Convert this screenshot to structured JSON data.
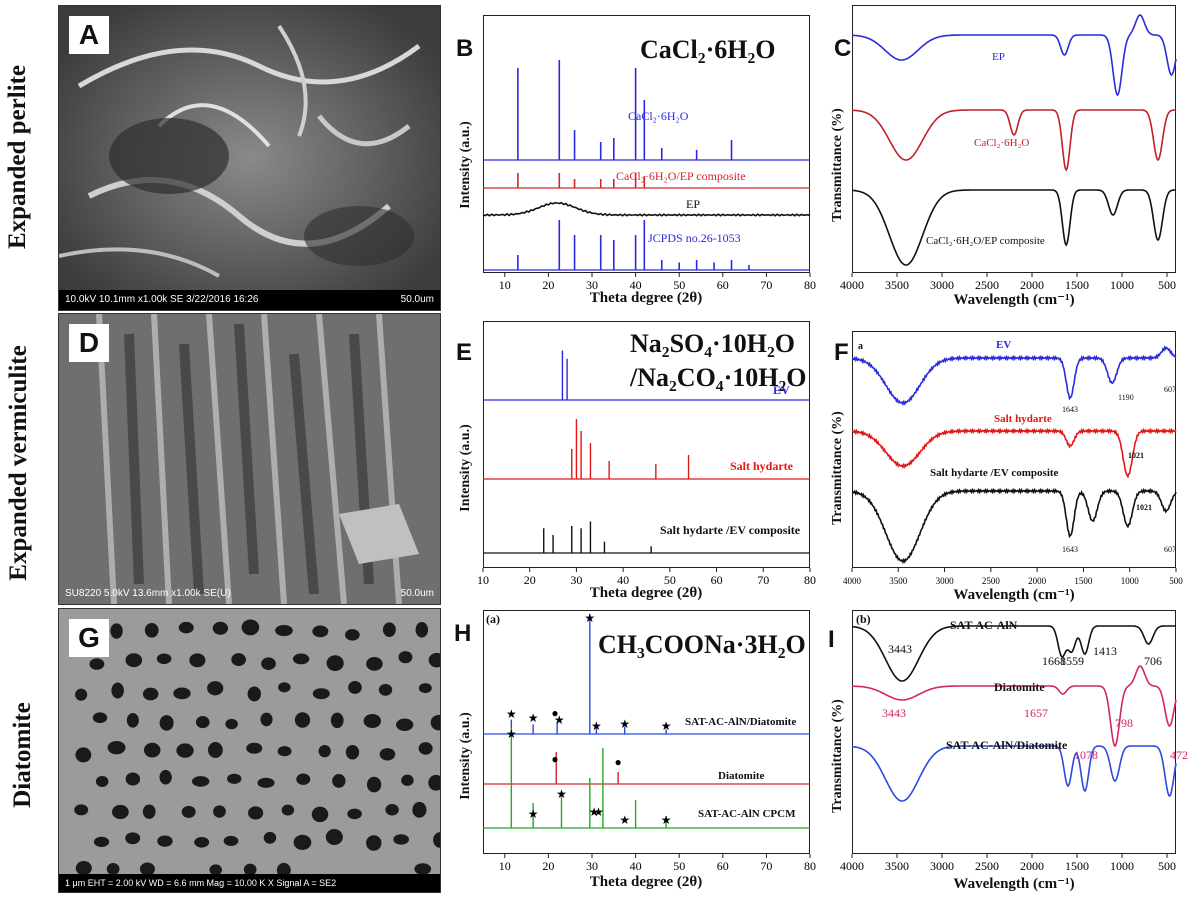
{
  "rows": [
    {
      "label": "Expanded perlite"
    },
    {
      "label": "Expanded vermiculite"
    },
    {
      "label": "Diatomite"
    }
  ],
  "sem": [
    {
      "letter": "A",
      "caption_left": "10.0kV 10.1mm x1.00k SE 3/22/2016 16:26",
      "caption_right": "50.0um"
    },
    {
      "letter": "D",
      "caption_left": "SU8220 5.0kV 13.6mm x1.00k SE(U)",
      "caption_right": "50.0um"
    },
    {
      "letter": "G",
      "caption_left": "1 μm   EHT = 2.00 kV   WD = 6.6 mm   Mag = 10.00 K X   Signal A = SE2",
      "caption_right": ""
    }
  ],
  "xrd": [
    {
      "letter": "B",
      "title": "CaCl₂·6H₂O",
      "title2": "",
      "tag": "",
      "xlabel": "Theta degree (2θ)",
      "ylabel": "Intensity (a.u.)",
      "ticks": [
        "10",
        "20",
        "30",
        "40",
        "50",
        "60",
        "70",
        "80"
      ],
      "series": [
        {
          "name": "CaCl₂·6H₂O",
          "color": "#2a2ae0"
        },
        {
          "name": "CaCl₂·6H₂O/EP composite",
          "color": "#d4252c"
        },
        {
          "name": "EP",
          "color": "#111111"
        },
        {
          "name": "JCPDS no.26-1053",
          "color": "#2a2ae0"
        }
      ]
    },
    {
      "letter": "E",
      "title": "Na₂SO₄·10H₂O",
      "title2": "/Na₂CO₄·10H₂O",
      "tag": "",
      "xlabel": "Theta degree (2θ)",
      "ylabel": "Intensity (a.u.)",
      "ticks": [
        "10",
        "20",
        "30",
        "40",
        "50",
        "60",
        "70",
        "80"
      ],
      "series": [
        {
          "name": "EV",
          "color": "#2a2ae0"
        },
        {
          "name": "Salt hydarte",
          "color": "#e01818"
        },
        {
          "name": "Salt hydarte /EV composite",
          "color": "#111111"
        }
      ]
    },
    {
      "letter": "H",
      "title": "CH₃COONa·3H₂O",
      "title2": "",
      "tag": "(a)",
      "xlabel": "Theta degree (2θ)",
      "ylabel": "Intensity (a.u.)",
      "ticks": [
        "10",
        "20",
        "30",
        "40",
        "50",
        "60",
        "70",
        "80"
      ],
      "series": [
        {
          "name": "SAT-AC-AlN/Diatomite",
          "color": "#2a4ae0"
        },
        {
          "name": "Diatomite",
          "color": "#d4252c"
        },
        {
          "name": "SAT-AC-AlN CPCM",
          "color": "#22aa22"
        }
      ]
    }
  ],
  "ftir": [
    {
      "letter": "C",
      "tag": "",
      "xlabel": "Wavelength (cm⁻¹)",
      "ylabel": "Transmittance (%)",
      "ticks": [
        "4000",
        "3500",
        "3000",
        "2500",
        "2000",
        "1500",
        "1000",
        "500"
      ],
      "series": [
        {
          "name": "EP",
          "color": "#2a2ae0"
        },
        {
          "name": "CaCl₂·6H₂O",
          "color": "#c0202a"
        },
        {
          "name": "CaCl₂·6H₂O/EP composite",
          "color": "#111111"
        }
      ],
      "peaks": []
    },
    {
      "letter": "F",
      "tag": "a",
      "xlabel": "Wavelength (cm⁻¹)",
      "ylabel": "Transmittance (%)",
      "ticks": [
        "4000",
        "3500",
        "3000",
        "2500",
        "2000",
        "1500",
        "1000",
        "500"
      ],
      "series": [
        {
          "name": "EV",
          "color": "#2a2ae0"
        },
        {
          "name": "Salt hydarte",
          "color": "#e01818"
        },
        {
          "name": "Salt hydarte /EV composite",
          "color": "#111111"
        }
      ],
      "peaks": [
        "1643",
        "1190",
        "607",
        "1021",
        "1021",
        "1643",
        "607"
      ]
    },
    {
      "letter": "I",
      "tag": "(b)",
      "xlabel": "Wavelength (cm⁻¹)",
      "ylabel": "Transmittance (%)",
      "ticks": [
        "4000",
        "3500",
        "3000",
        "2500",
        "2000",
        "1500",
        "1000",
        "500"
      ],
      "series": [
        {
          "name": "SAT-AC-AlN",
          "color": "#111111"
        },
        {
          "name": "Diatomite",
          "color": "#d4256a"
        },
        {
          "name": "SAT-AC-AlN/Diatomite",
          "color": "#2a4ae0"
        }
      ],
      "peaks": [
        "3443",
        "1668",
        "1559",
        "1413",
        "706",
        "3443",
        "1657",
        "798",
        "1078",
        "472"
      ]
    }
  ],
  "chart_data": [
    {
      "panel": "B",
      "type": "line",
      "title": "CaCl₂·6H₂O",
      "xlabel": "Theta degree (2θ)",
      "ylabel": "Intensity (a.u.)",
      "xlim": [
        5,
        80
      ],
      "series": [
        {
          "name": "CaCl₂·6H₂O",
          "peaks_2theta": [
            13,
            22.5,
            26,
            32,
            35,
            40,
            42,
            46,
            54,
            62
          ]
        },
        {
          "name": "CaCl₂·6H₂O/EP composite",
          "peaks_2theta": [
            13,
            22.5,
            26,
            32,
            35,
            40,
            42
          ]
        },
        {
          "name": "EP",
          "broad_hump_2theta": 22
        },
        {
          "name": "JCPDS no.26-1053",
          "peaks_2theta": [
            13,
            22.5,
            26,
            32,
            35,
            40,
            42,
            46,
            50,
            54,
            58,
            62,
            66
          ]
        }
      ]
    },
    {
      "panel": "E",
      "type": "line",
      "title": "Na₂SO₄·10H₂O/Na₂CO₄·10H₂O",
      "xlabel": "Theta degree (2θ)",
      "ylabel": "Intensity (a.u.)",
      "xlim": [
        10,
        80
      ],
      "series": [
        {
          "name": "EV",
          "peaks_2theta": [
            27,
            28
          ]
        },
        {
          "name": "Salt hydarte",
          "peaks_2theta": [
            29,
            30,
            31,
            33,
            37,
            47,
            54
          ]
        },
        {
          "name": "Salt hydarte /EV composite",
          "peaks_2theta": [
            23,
            25,
            29,
            31,
            33,
            36,
            46
          ]
        }
      ]
    },
    {
      "panel": "H",
      "type": "line",
      "title": "CH₃COONa·3H₂O",
      "xlabel": "Theta degree (2θ)",
      "ylabel": "Intensity (a.u.)",
      "xlim": [
        5,
        80
      ],
      "series": [
        {
          "name": "SAT-AC-AlN/Diatomite",
          "peaks_2theta": [
            11.5,
            16.5,
            22,
            29.5,
            31,
            37.5,
            47
          ]
        },
        {
          "name": "Diatomite",
          "peaks_2theta": [
            21.8,
            36
          ]
        },
        {
          "name": "SAT-AC-AlN CPCM",
          "peaks_2theta": [
            11.5,
            16.5,
            23,
            29.5,
            32.5,
            40,
            47
          ]
        }
      ]
    },
    {
      "panel": "C",
      "type": "line",
      "xlabel": "Wavelength (cm⁻¹)",
      "ylabel": "Transmittance (%)",
      "xlim": [
        4000,
        400
      ],
      "series": [
        {
          "name": "EP",
          "dips_cm1": [
            3450,
            1640,
            1050,
            800,
            450
          ]
        },
        {
          "name": "CaCl₂·6H₂O",
          "dips_cm1": [
            3400,
            2200,
            1620,
            600
          ]
        },
        {
          "name": "CaCl₂·6H₂O/EP composite",
          "dips_cm1": [
            3400,
            1620,
            1100,
            600
          ]
        }
      ]
    },
    {
      "panel": "F",
      "type": "line",
      "xlabel": "Wavelength (cm⁻¹)",
      "ylabel": "Transmittance (%)",
      "xlim": [
        4000,
        500
      ],
      "series": [
        {
          "name": "EV",
          "dips_cm1": [
            3450,
            1643,
            1190,
            607
          ]
        },
        {
          "name": "Salt hydarte",
          "dips_cm1": [
            3450,
            1643,
            1021
          ]
        },
        {
          "name": "Salt hydarte /EV composite",
          "dips_cm1": [
            3450,
            1643,
            1400,
            1021,
            607
          ]
        }
      ]
    },
    {
      "panel": "I",
      "type": "line",
      "xlabel": "Wavelength (cm⁻¹)",
      "ylabel": "Transmittance (%)",
      "xlim": [
        4000,
        400
      ],
      "series": [
        {
          "name": "SAT-AC-AlN",
          "dips_cm1": [
            3443,
            1668,
            1559,
            1413,
            706
          ]
        },
        {
          "name": "Diatomite",
          "dips_cm1": [
            3443,
            1657,
            1078,
            798,
            472
          ]
        },
        {
          "name": "SAT-AC-AlN/Diatomite",
          "dips_cm1": [
            3443,
            1600,
            1413,
            1078,
            472
          ]
        }
      ]
    }
  ]
}
